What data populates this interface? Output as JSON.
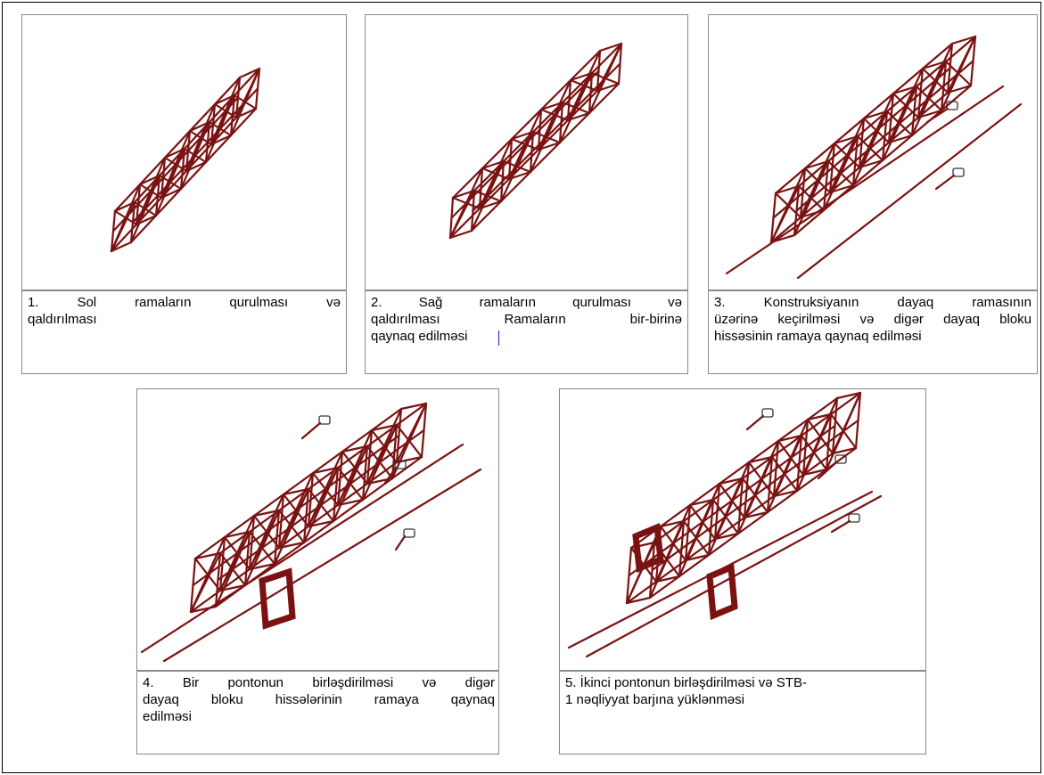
{
  "figures": [
    {
      "id": 1,
      "caption_lines": [
        "1.  Sol  ramaların  qurulması  və",
        "qaldırılması"
      ]
    },
    {
      "id": 2,
      "caption_lines": [
        "2.  Sağ  ramaların  qurulması  və",
        "qaldırılması  Ramaların  bir-birinə",
        "qaynaq edilməsi"
      ]
    },
    {
      "id": 3,
      "caption_lines": [
        "3.  Konstruksiyanın dayaq ramasının",
        "üzərinə keçirilməsi və digər dayaq bloku",
        "hissəsinin ramaya qaynaq edilməsi"
      ]
    },
    {
      "id": 4,
      "caption_lines": [
        "4. Bir pontonun birləşdirilməsi və digər",
        "dayaq bloku hissələrinin ramaya qaynaq",
        "edilməsi"
      ]
    },
    {
      "id": 5,
      "caption_lines": [
        "5. İkinci pontonun birləşdirilməsi və STB-",
        "1 nəqliyyat barjına yüklənməsi"
      ]
    }
  ],
  "colors": {
    "truss": "#7a1212",
    "rail": "#111111",
    "connector": "#22dd22",
    "frame": "#8a8a8a"
  }
}
